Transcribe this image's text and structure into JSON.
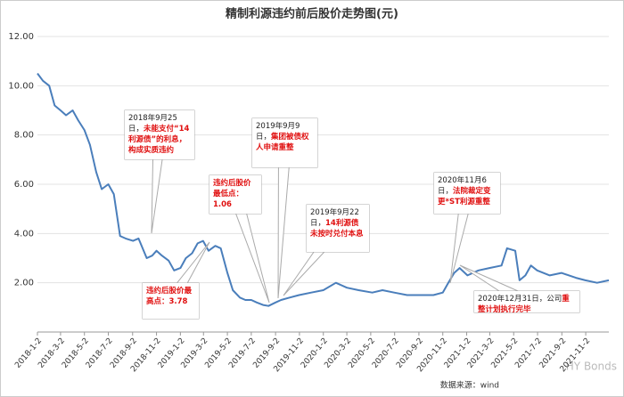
{
  "chart_data": {
    "type": "line",
    "title": "精制利源违约前后股价走势图(元)",
    "color": "#4a7ebb",
    "grid": true,
    "ylim": [
      0,
      12
    ],
    "yticks": [
      {
        "value": 2,
        "label": "2.00"
      },
      {
        "value": 4,
        "label": "4.00"
      },
      {
        "value": 6,
        "label": "6.00"
      },
      {
        "value": 8,
        "label": "8.00"
      },
      {
        "value": 10,
        "label": "10.00"
      },
      {
        "value": 12,
        "label": "12.00"
      }
    ],
    "xlim": [
      "2018-1-2",
      "2021-12-31"
    ],
    "xticks": [
      "2018-1-2",
      "2018-3-2",
      "2018-5-2",
      "2018-7-2",
      "2018-9-2",
      "2018-11-2",
      "2019-1-2",
      "2019-3-2",
      "2019-5-2",
      "2019-7-2",
      "2019-9-2",
      "2019-11-2",
      "2020-1-2",
      "2020-3-2",
      "2020-5-2",
      "2020-7-2",
      "2020-9-2",
      "2020-11-2",
      "2021-1-2",
      "2021-3-2",
      "2021-5-2",
      "2021-7-2",
      "2021-9-2",
      "2021-11-2"
    ],
    "x": [
      "2018-1-2",
      "2018-1-16",
      "2018-2-1",
      "2018-2-15",
      "2018-3-2",
      "2018-3-16",
      "2018-4-2",
      "2018-4-16",
      "2018-5-2",
      "2018-5-16",
      "2018-6-1",
      "2018-6-15",
      "2018-7-2",
      "2018-7-16",
      "2018-8-1",
      "2018-8-15",
      "2018-9-3",
      "2018-9-17",
      "2018-10-8",
      "2018-10-22",
      "2018-11-2",
      "2018-11-16",
      "2018-12-3",
      "2018-12-17",
      "2019-1-2",
      "2019-1-16",
      "2019-2-1",
      "2019-2-15",
      "2019-3-1",
      "2019-3-15",
      "2019-4-1",
      "2019-4-15",
      "2019-5-2",
      "2019-5-16",
      "2019-6-3",
      "2019-6-17",
      "2019-7-2",
      "2019-7-16",
      "2019-8-1",
      "2019-8-15",
      "2019-9-2",
      "2019-9-16",
      "2019-10-8",
      "2019-11-1",
      "2019-12-2",
      "2020-1-2",
      "2020-2-3",
      "2020-3-2",
      "2020-4-1",
      "2020-5-6",
      "2020-6-1",
      "2020-7-1",
      "2020-8-3",
      "2020-9-1",
      "2020-10-9",
      "2020-11-2",
      "2020-11-16",
      "2020-12-1",
      "2020-12-15",
      "2021-1-4",
      "2021-2-1",
      "2021-3-1",
      "2021-4-1",
      "2021-4-15",
      "2021-5-6",
      "2021-5-17",
      "2021-6-1",
      "2021-6-15",
      "2021-7-1",
      "2021-8-2",
      "2021-9-1",
      "2021-10-8",
      "2021-11-1",
      "2021-12-1",
      "2021-12-31"
    ],
    "values": [
      10.5,
      10.2,
      10.0,
      9.2,
      9.0,
      8.8,
      9.0,
      8.6,
      8.2,
      7.6,
      6.5,
      5.8,
      6.0,
      5.6,
      3.9,
      3.8,
      3.7,
      3.8,
      3.0,
      3.1,
      3.3,
      3.1,
      2.9,
      2.5,
      2.6,
      3.0,
      3.2,
      3.6,
      3.7,
      3.3,
      3.5,
      3.4,
      2.4,
      1.7,
      1.4,
      1.3,
      1.3,
      1.2,
      1.1,
      1.06,
      1.2,
      1.3,
      1.4,
      1.5,
      1.6,
      1.7,
      2.0,
      1.8,
      1.7,
      1.6,
      1.7,
      1.6,
      1.5,
      1.5,
      1.5,
      1.6,
      2.0,
      2.4,
      2.6,
      2.3,
      2.5,
      2.6,
      2.7,
      3.4,
      3.3,
      2.1,
      2.3,
      2.7,
      2.5,
      2.3,
      2.4,
      2.2,
      2.1,
      2.0,
      2.1
    ],
    "annotations": [
      {
        "lead": "2018年9月25日，",
        "text": "未能支付“14 利源债”的利息，构成实质违约"
      },
      {
        "lead": "2019年9月9日，",
        "text": "集团被债权人申请重整"
      },
      {
        "text": "违约后股价最低点：1.06"
      },
      {
        "lead": "2019年9月22日，",
        "text": "14利源债未按时兑付本息"
      },
      {
        "lead": "2020年11月6日，",
        "text": "法院裁定变更*ST利源重整"
      },
      {
        "text": "违约后股价最高点：3.78"
      },
      {
        "lead": "2020年12月31日，公司",
        "text": "重整计划执行完毕"
      }
    ],
    "source": "数据来源：wind",
    "watermark": "HY Bonds"
  }
}
